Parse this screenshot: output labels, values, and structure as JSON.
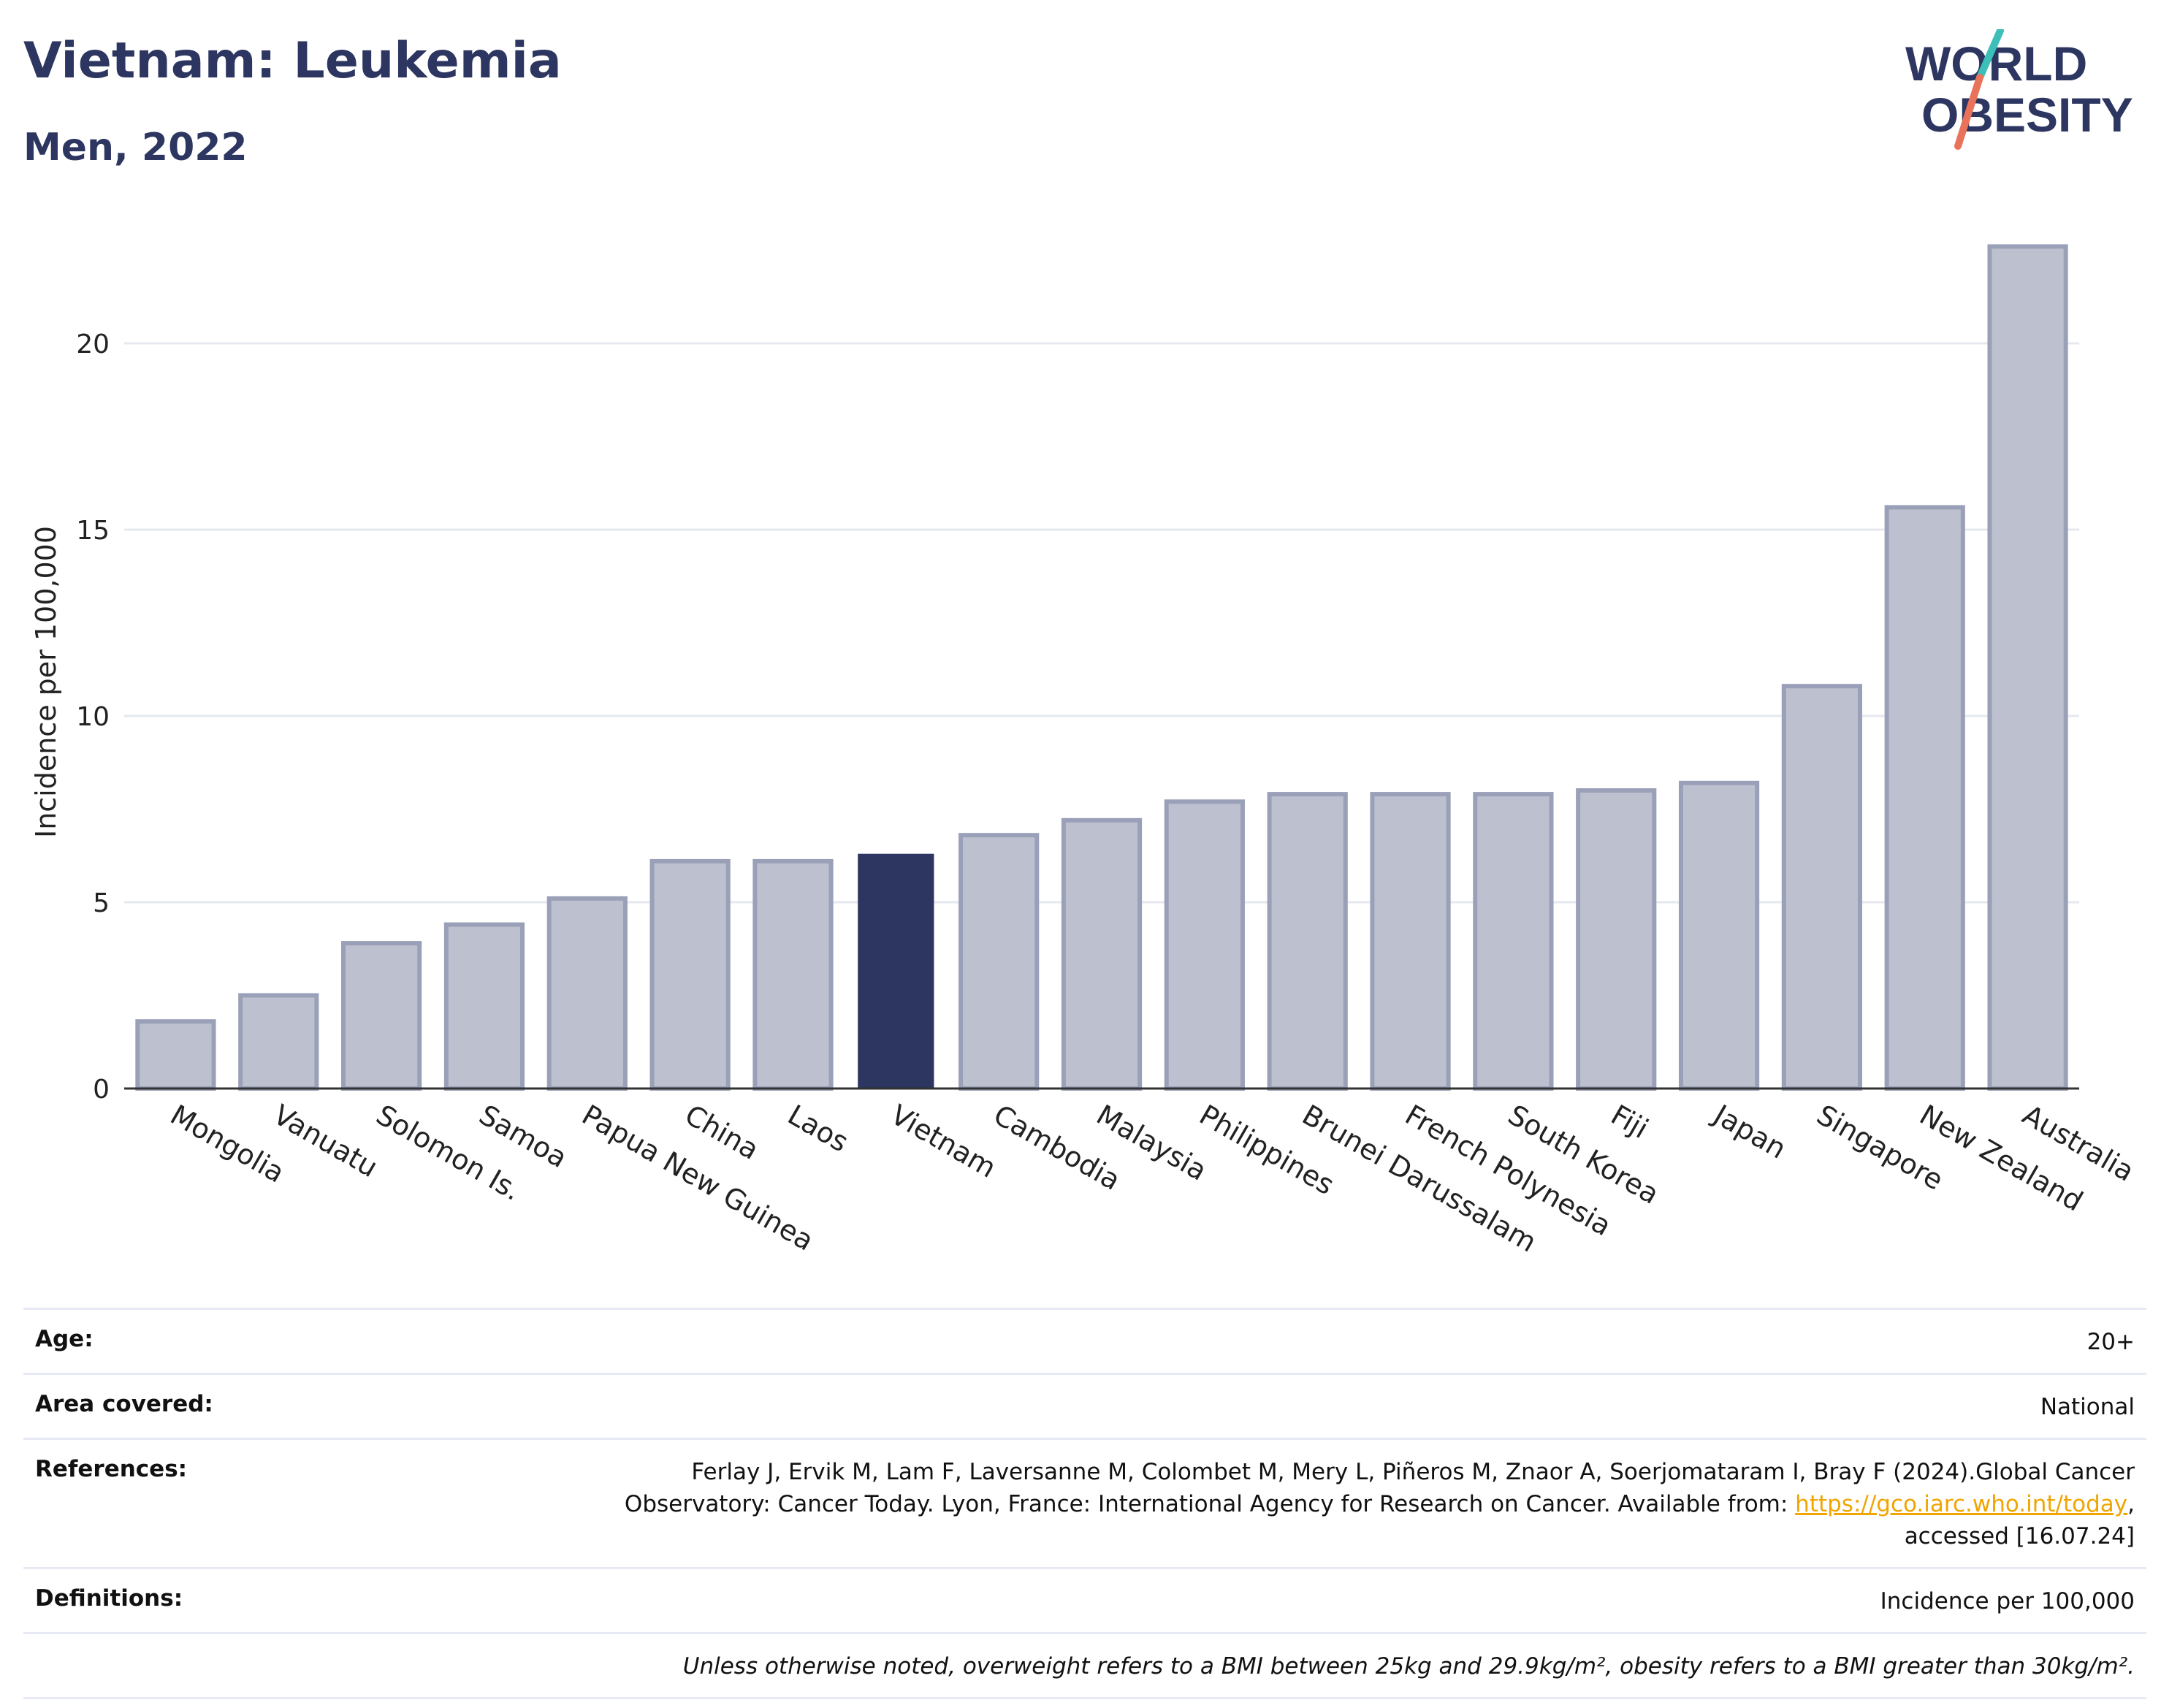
{
  "header": {
    "title": "Vietnam: Leukemia",
    "subtitle": "Men, 2022",
    "logo_line1": "WORLD",
    "logo_line2": "OBESITY"
  },
  "colors": {
    "highlight": "#2c3660",
    "bar_fill": "#bcc0cf",
    "bar_stroke": "#9aa0b8",
    "grid": "#e6e8f0",
    "link": "#f0a500",
    "logo_teal": "#3bbfb8",
    "logo_coral": "#e8735a"
  },
  "chart_data": {
    "type": "bar",
    "ylabel": "Incidence per 100,000",
    "xlabel": "",
    "ylim": [
      0,
      23
    ],
    "yticks": [
      0,
      5,
      10,
      15,
      20
    ],
    "grid": true,
    "highlight_category": "Vietnam",
    "categories": [
      "Mongolia",
      "Vanuatu",
      "Solomon Is.",
      "Samoa",
      "Papua New Guinea",
      "China",
      "Laos",
      "Vietnam",
      "Cambodia",
      "Malaysia",
      "Philippines",
      "Brunei Darussalam",
      "French Polynesia",
      "South Korea",
      "Fiji",
      "Japan",
      "Singapore",
      "New Zealand",
      "Australia"
    ],
    "values": [
      1.8,
      2.5,
      3.9,
      4.4,
      5.1,
      6.1,
      6.1,
      6.3,
      6.8,
      7.2,
      7.7,
      7.9,
      7.9,
      7.9,
      8.0,
      8.2,
      10.8,
      15.6,
      22.6
    ]
  },
  "info": {
    "age_label": "Age:",
    "age_value": "20+",
    "area_label": "Area covered:",
    "area_value": "National",
    "references_label": "References:",
    "references_text": "Ferlay J, Ervik M, Lam F, Laversanne M, Colombet M, Mery L, Piñeros M, Znaor A, Soerjomataram I, Bray F (2024).Global Cancer Observatory: Cancer Today. Lyon, France: International Agency for Research on Cancer. Available from: ",
    "references_link": "https://gco.iarc.who.int/today",
    "references_suffix": ", accessed [16.07.24]",
    "definitions_label": "Definitions:",
    "definitions_value": "Incidence per 100,000",
    "note": "Unless otherwise noted, overweight refers to a BMI between 25kg and 29.9kg/m², obesity refers to a BMI greater than 30kg/m²."
  }
}
